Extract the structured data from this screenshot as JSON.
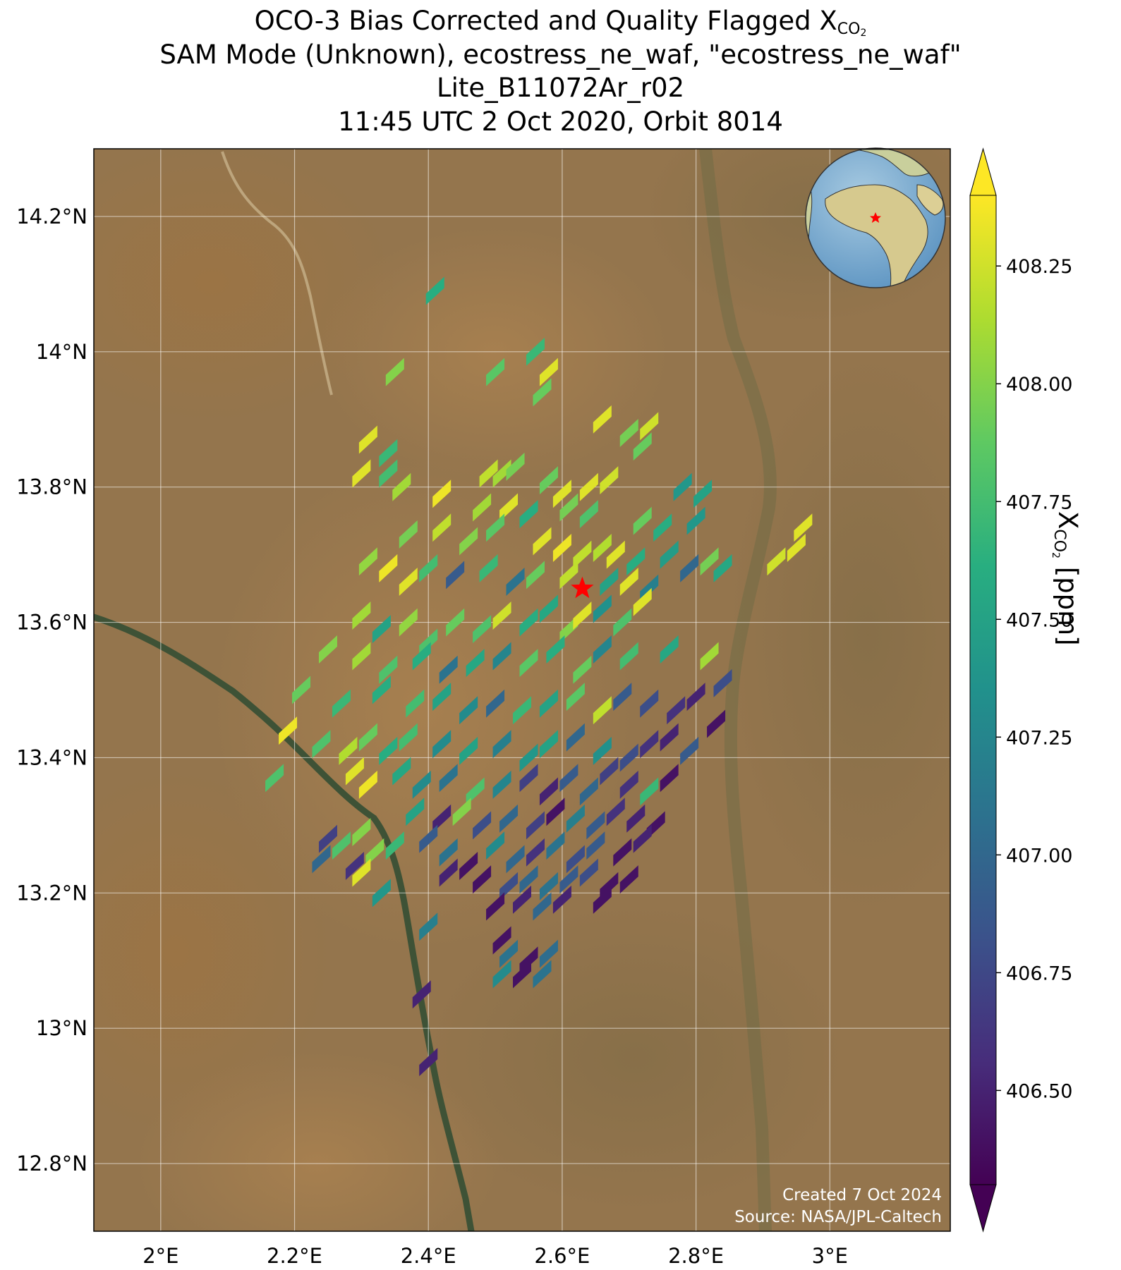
{
  "title": {
    "line1_prefix": "OCO-3 Bias Corrected and Quality Flagged X",
    "line1_sub": "CO",
    "line1_sub2": "2",
    "line2": "SAM Mode (Unknown), ecostress_ne_waf, \"ecostress_ne_waf\"",
    "line3": "Lite_B11072Ar_r02",
    "line4": "11:45 UTC 2 Oct 2020, Orbit 8014"
  },
  "map": {
    "lon_range": [
      1.9,
      3.18
    ],
    "lat_range": [
      12.7,
      14.3
    ],
    "lon_ticks": [
      2.0,
      2.2,
      2.4,
      2.6,
      2.8,
      3.0
    ],
    "lon_tick_labels": [
      "2°E",
      "2.2°E",
      "2.4°E",
      "2.6°E",
      "2.8°E",
      "3°E"
    ],
    "lat_ticks": [
      12.8,
      13.0,
      13.2,
      13.4,
      13.6,
      13.8,
      14.0,
      14.2
    ],
    "lat_tick_labels": [
      "12.8°N",
      "13°N",
      "13.2°N",
      "13.4°N",
      "13.6°N",
      "13.8°N",
      "14°N",
      "14.2°N"
    ],
    "gridlines": true,
    "target_marker": {
      "lon": 2.63,
      "lat": 13.65,
      "color": "#ff0000"
    },
    "basemap": "satellite imagery",
    "credits": {
      "created": "Created 7 Oct 2024",
      "source": "Source: NASA/JPL-Caltech"
    }
  },
  "inset_globe": {
    "position": "top-right",
    "marker_color": "#ff0000"
  },
  "colorbar": {
    "label_prefix": "X",
    "label_sub": "CO",
    "label_sub2": "2",
    "label_suffix": " [ppm]",
    "min": 406.3,
    "max": 408.4,
    "ticks": [
      406.5,
      406.75,
      407.0,
      407.25,
      407.5,
      407.75,
      408.0,
      408.25
    ],
    "tick_labels": [
      "406.50",
      "406.75",
      "407.00",
      "407.25",
      "407.50",
      "407.75",
      "408.00",
      "408.25"
    ],
    "extend": "both",
    "colormap": "viridis"
  },
  "chart_data": {
    "type": "scatter",
    "x_name": "longitude",
    "y_name": "latitude",
    "value_name": "XCO2 [ppm]",
    "points": [
      [
        2.41,
        14.09,
        407.6
      ],
      [
        2.56,
        14.0,
        407.7
      ],
      [
        2.5,
        13.97,
        407.85
      ],
      [
        2.58,
        13.97,
        408.3
      ],
      [
        2.35,
        13.97,
        408.0
      ],
      [
        2.57,
        13.94,
        407.9
      ],
      [
        2.66,
        13.9,
        408.3
      ],
      [
        2.73,
        13.89,
        408.25
      ],
      [
        2.7,
        13.88,
        407.95
      ],
      [
        2.72,
        13.86,
        407.9
      ],
      [
        2.31,
        13.87,
        408.3
      ],
      [
        2.34,
        13.85,
        407.7
      ],
      [
        2.3,
        13.82,
        408.3
      ],
      [
        2.34,
        13.82,
        407.75
      ],
      [
        2.36,
        13.8,
        408.1
      ],
      [
        2.42,
        13.79,
        408.35
      ],
      [
        2.49,
        13.82,
        408.2
      ],
      [
        2.51,
        13.82,
        408.1
      ],
      [
        2.53,
        13.83,
        407.95
      ],
      [
        2.58,
        13.81,
        407.9
      ],
      [
        2.6,
        13.79,
        408.3
      ],
      [
        2.64,
        13.8,
        408.3
      ],
      [
        2.67,
        13.81,
        408.25
      ],
      [
        2.78,
        13.8,
        407.4
      ],
      [
        2.81,
        13.79,
        407.5
      ],
      [
        2.48,
        13.77,
        408.1
      ],
      [
        2.52,
        13.77,
        408.3
      ],
      [
        2.55,
        13.76,
        407.6
      ],
      [
        2.61,
        13.77,
        407.95
      ],
      [
        2.64,
        13.76,
        407.8
      ],
      [
        2.72,
        13.75,
        407.9
      ],
      [
        2.75,
        13.74,
        407.6
      ],
      [
        2.8,
        13.75,
        407.4
      ],
      [
        2.96,
        13.74,
        408.3
      ],
      [
        2.37,
        13.73,
        407.95
      ],
      [
        2.42,
        13.74,
        408.2
      ],
      [
        2.46,
        13.72,
        408.0
      ],
      [
        2.5,
        13.74,
        407.85
      ],
      [
        2.57,
        13.72,
        408.3
      ],
      [
        2.6,
        13.71,
        408.35
      ],
      [
        2.63,
        13.7,
        408.2
      ],
      [
        2.66,
        13.71,
        408.15
      ],
      [
        2.68,
        13.7,
        408.3
      ],
      [
        2.71,
        13.69,
        407.6
      ],
      [
        2.76,
        13.7,
        407.45
      ],
      [
        2.31,
        13.69,
        408.05
      ],
      [
        2.34,
        13.68,
        408.35
      ],
      [
        2.37,
        13.66,
        408.3
      ],
      [
        2.4,
        13.68,
        407.75
      ],
      [
        2.44,
        13.67,
        406.9
      ],
      [
        2.49,
        13.68,
        407.7
      ],
      [
        2.53,
        13.66,
        407.1
      ],
      [
        2.56,
        13.67,
        407.9
      ],
      [
        2.61,
        13.67,
        408.2
      ],
      [
        2.67,
        13.66,
        407.5
      ],
      [
        2.7,
        13.66,
        408.3
      ],
      [
        2.73,
        13.65,
        407.2
      ],
      [
        2.79,
        13.68,
        407.0
      ],
      [
        2.82,
        13.69,
        407.95
      ],
      [
        2.84,
        13.68,
        407.55
      ],
      [
        2.92,
        13.69,
        408.25
      ],
      [
        2.95,
        13.71,
        408.3
      ],
      [
        2.3,
        13.61,
        408.1
      ],
      [
        2.33,
        13.59,
        407.5
      ],
      [
        2.37,
        13.6,
        408.05
      ],
      [
        2.4,
        13.57,
        407.8
      ],
      [
        2.44,
        13.6,
        407.9
      ],
      [
        2.48,
        13.59,
        407.8
      ],
      [
        2.51,
        13.61,
        408.25
      ],
      [
        2.55,
        13.6,
        407.6
      ],
      [
        2.58,
        13.62,
        407.55
      ],
      [
        2.61,
        13.59,
        408.0
      ],
      [
        2.63,
        13.61,
        408.3
      ],
      [
        2.66,
        13.62,
        407.35
      ],
      [
        2.69,
        13.6,
        407.8
      ],
      [
        2.72,
        13.63,
        408.3
      ],
      [
        2.25,
        13.56,
        408.0
      ],
      [
        2.3,
        13.55,
        408.1
      ],
      [
        2.34,
        13.53,
        407.8
      ],
      [
        2.39,
        13.55,
        407.6
      ],
      [
        2.43,
        13.53,
        407.1
      ],
      [
        2.47,
        13.54,
        407.55
      ],
      [
        2.51,
        13.55,
        407.25
      ],
      [
        2.55,
        13.54,
        407.85
      ],
      [
        2.59,
        13.56,
        407.6
      ],
      [
        2.63,
        13.53,
        407.9
      ],
      [
        2.66,
        13.56,
        407.25
      ],
      [
        2.7,
        13.55,
        407.75
      ],
      [
        2.76,
        13.56,
        407.55
      ],
      [
        2.82,
        13.55,
        408.1
      ],
      [
        2.84,
        13.51,
        406.8
      ],
      [
        2.21,
        13.5,
        407.9
      ],
      [
        2.27,
        13.48,
        407.7
      ],
      [
        2.33,
        13.5,
        407.6
      ],
      [
        2.38,
        13.48,
        407.75
      ],
      [
        2.42,
        13.49,
        407.5
      ],
      [
        2.46,
        13.47,
        407.3
      ],
      [
        2.5,
        13.48,
        407.0
      ],
      [
        2.54,
        13.47,
        407.7
      ],
      [
        2.58,
        13.48,
        407.5
      ],
      [
        2.62,
        13.49,
        407.85
      ],
      [
        2.66,
        13.47,
        408.2
      ],
      [
        2.69,
        13.49,
        406.9
      ],
      [
        2.73,
        13.48,
        406.8
      ],
      [
        2.77,
        13.47,
        406.6
      ],
      [
        2.8,
        13.49,
        406.5
      ],
      [
        2.19,
        13.44,
        408.35
      ],
      [
        2.24,
        13.42,
        407.8
      ],
      [
        2.28,
        13.41,
        408.15
      ],
      [
        2.31,
        13.43,
        407.9
      ],
      [
        2.34,
        13.41,
        407.6
      ],
      [
        2.37,
        13.43,
        407.75
      ],
      [
        2.42,
        13.42,
        407.3
      ],
      [
        2.46,
        13.41,
        407.5
      ],
      [
        2.51,
        13.42,
        407.2
      ],
      [
        2.55,
        13.4,
        407.4
      ],
      [
        2.58,
        13.42,
        407.5
      ],
      [
        2.62,
        13.43,
        407.0
      ],
      [
        2.66,
        13.41,
        407.35
      ],
      [
        2.7,
        13.4,
        406.8
      ],
      [
        2.73,
        13.42,
        406.6
      ],
      [
        2.76,
        13.43,
        406.5
      ],
      [
        2.79,
        13.41,
        406.9
      ],
      [
        2.83,
        13.45,
        406.4
      ],
      [
        2.29,
        13.38,
        408.3
      ],
      [
        2.31,
        13.36,
        408.35
      ],
      [
        2.17,
        13.37,
        407.8
      ],
      [
        2.36,
        13.38,
        407.55
      ],
      [
        2.39,
        13.36,
        407.3
      ],
      [
        2.43,
        13.37,
        407.1
      ],
      [
        2.47,
        13.35,
        407.8
      ],
      [
        2.51,
        13.36,
        407.25
      ],
      [
        2.55,
        13.37,
        406.7
      ],
      [
        2.58,
        13.35,
        406.5
      ],
      [
        2.61,
        13.37,
        406.9
      ],
      [
        2.64,
        13.35,
        407.0
      ],
      [
        2.67,
        13.38,
        406.7
      ],
      [
        2.7,
        13.36,
        406.6
      ],
      [
        2.73,
        13.35,
        407.7
      ],
      [
        2.76,
        13.37,
        406.4
      ],
      [
        2.38,
        13.32,
        407.5
      ],
      [
        2.42,
        13.31,
        406.5
      ],
      [
        2.45,
        13.32,
        408.0
      ],
      [
        2.48,
        13.3,
        406.8
      ],
      [
        2.52,
        13.31,
        407.0
      ],
      [
        2.56,
        13.3,
        406.7
      ],
      [
        2.59,
        13.32,
        406.4
      ],
      [
        2.62,
        13.31,
        407.2
      ],
      [
        2.65,
        13.3,
        406.9
      ],
      [
        2.68,
        13.32,
        406.6
      ],
      [
        2.71,
        13.31,
        406.5
      ],
      [
        2.74,
        13.3,
        406.4
      ],
      [
        2.25,
        13.28,
        406.7
      ],
      [
        2.27,
        13.27,
        407.8
      ],
      [
        2.3,
        13.29,
        408.0
      ],
      [
        2.35,
        13.27,
        407.7
      ],
      [
        2.4,
        13.28,
        406.9
      ],
      [
        2.43,
        13.26,
        407.1
      ],
      [
        2.5,
        13.27,
        407.3
      ],
      [
        2.53,
        13.25,
        407.0
      ],
      [
        2.56,
        13.26,
        406.6
      ],
      [
        2.59,
        13.27,
        407.1
      ],
      [
        2.62,
        13.25,
        406.8
      ],
      [
        2.65,
        13.27,
        406.9
      ],
      [
        2.69,
        13.26,
        406.4
      ],
      [
        2.72,
        13.28,
        406.5
      ],
      [
        2.24,
        13.25,
        407.0
      ],
      [
        2.29,
        13.24,
        406.6
      ],
      [
        2.32,
        13.26,
        408.0
      ],
      [
        2.3,
        13.23,
        408.3
      ],
      [
        2.43,
        13.23,
        406.5
      ],
      [
        2.46,
        13.24,
        406.4
      ],
      [
        2.48,
        13.22,
        406.4
      ],
      [
        2.52,
        13.21,
        406.8
      ],
      [
        2.55,
        13.22,
        407.0
      ],
      [
        2.58,
        13.21,
        407.1
      ],
      [
        2.61,
        13.22,
        406.9
      ],
      [
        2.64,
        13.23,
        406.8
      ],
      [
        2.67,
        13.21,
        406.4
      ],
      [
        2.7,
        13.22,
        406.4
      ],
      [
        2.33,
        13.2,
        407.4
      ],
      [
        2.5,
        13.18,
        406.4
      ],
      [
        2.54,
        13.19,
        406.5
      ],
      [
        2.57,
        13.18,
        407.0
      ],
      [
        2.6,
        13.19,
        406.5
      ],
      [
        2.66,
        13.19,
        406.4
      ],
      [
        2.4,
        13.15,
        407.2
      ],
      [
        2.51,
        13.13,
        406.4
      ],
      [
        2.52,
        13.11,
        407.1
      ],
      [
        2.55,
        13.1,
        406.4
      ],
      [
        2.58,
        13.11,
        407.05
      ],
      [
        2.51,
        13.08,
        407.3
      ],
      [
        2.54,
        13.08,
        406.4
      ],
      [
        2.57,
        13.08,
        407.1
      ],
      [
        2.39,
        13.05,
        406.5
      ],
      [
        2.4,
        12.95,
        406.5
      ]
    ]
  }
}
